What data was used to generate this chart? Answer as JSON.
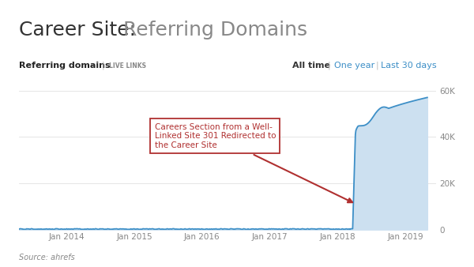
{
  "title_bold": "Career Site:",
  "title_light": " Referring Domains",
  "subtitle_bold": "Referring domains",
  "subtitle_sep": " | ",
  "subtitle_live": "LIVE LINKS",
  "nav_all": "All time",
  "nav_year": "One year",
  "nav_days": "Last 30 days",
  "source": "Source: ahrefs",
  "annotation_text": "Careers Section from a Well-\nLinked Site 301 Redirected to\nthe Career Site",
  "line_color": "#3d8fc7",
  "fill_color": "#cce0f0",
  "annotation_box_facecolor": "#FFFFFF",
  "annotation_border_color": "#b03030",
  "annotation_text_color": "#b03030",
  "arrow_color": "#b03030",
  "ytick_labels": [
    "60K",
    "40K",
    "20K",
    "0"
  ],
  "ytick_values": [
    60000,
    40000,
    20000,
    0
  ],
  "xtick_labels": [
    "Jan 2014",
    "Jan 2015",
    "Jan 2016",
    "Jan 2017",
    "Jan 2018",
    "Jan 2019"
  ],
  "xtick_values": [
    2014.0,
    2015.0,
    2016.0,
    2017.0,
    2018.0,
    2019.0
  ],
  "ylim": [
    0,
    65000
  ],
  "xlim": [
    2013.3,
    2019.45
  ],
  "background_color": "#FFFFFF",
  "grid_color": "#E0E0E0",
  "title_fontsize": 18,
  "nav_color_alltime": "#333333",
  "nav_color_other": "#3d8fc7",
  "subtitle_color": "#222222",
  "live_links_color": "#888888",
  "source_color": "#888888",
  "tick_color": "#888888"
}
